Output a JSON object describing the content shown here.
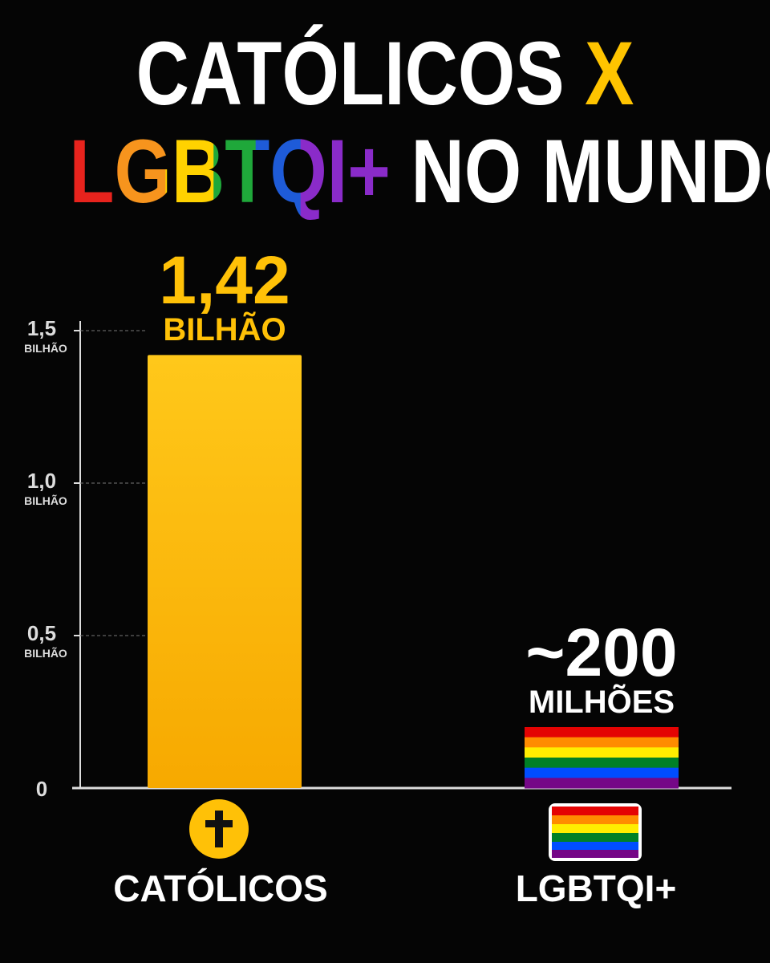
{
  "chart_data": {
    "type": "bar",
    "title_parts": [
      "CATÓLICOS",
      "X",
      "LGBTQI+",
      "NO MUNDO"
    ],
    "categories": [
      "CATÓLICOS",
      "LGBTQI+"
    ],
    "values": [
      1.42,
      0.2
    ],
    "value_labels": [
      "1,42\nBILHÃO",
      "~200\nMILHÕES"
    ],
    "value_label_colors": [
      "#FFC107",
      "#FFFFFF"
    ],
    "colors": [
      "#FFC107",
      [
        "#E40303",
        "#FF8C00",
        "#FFED00",
        "#008026",
        "#004DFF",
        "#750787"
      ]
    ],
    "ylim": [
      0,
      1.5
    ],
    "yticks": [
      0,
      {
        "value": 0.5,
        "label": "0,5"
      },
      {
        "value": 1.0,
        "label": "1,0"
      },
      {
        "value": 1.5,
        "label": "1,5"
      }
    ],
    "y_unit": "BILHÃO",
    "grid": true
  }
}
